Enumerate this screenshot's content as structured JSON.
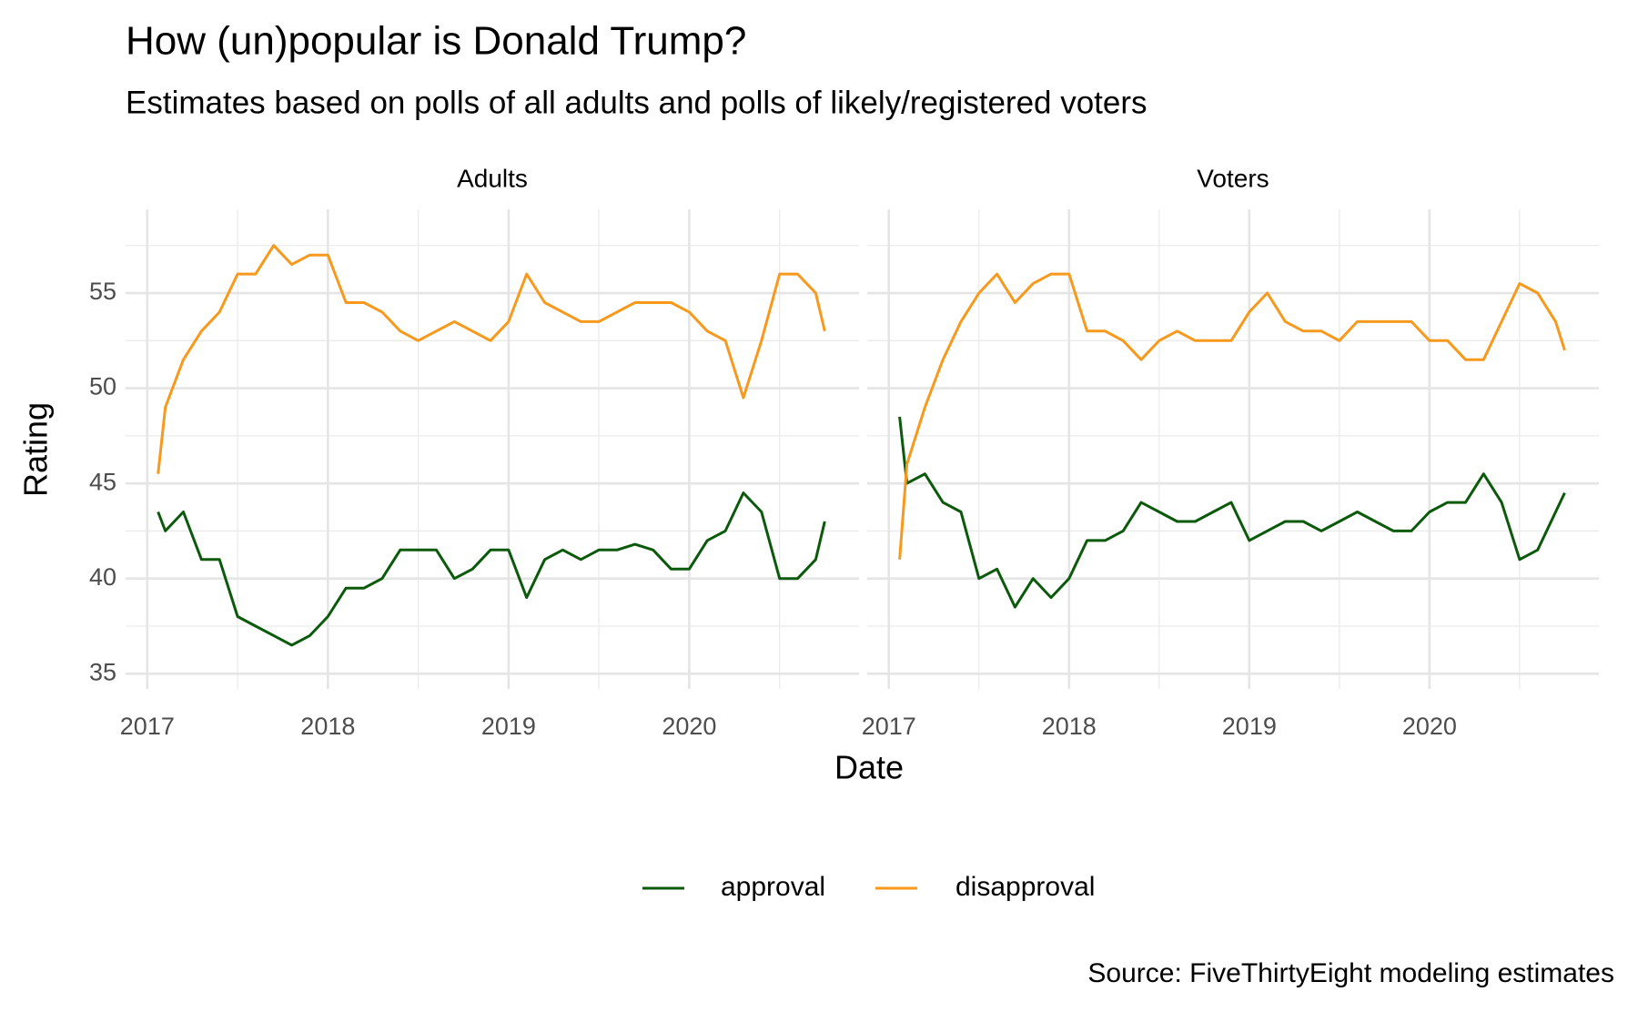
{
  "title": "How (un)popular is Donald Trump?",
  "subtitle": "Estimates based on polls of all adults and polls of likely/registered voters",
  "xlabel": "Date",
  "ylabel": "Rating",
  "caption": "Source: FiveThirtyEight modeling estimates",
  "chart_data": [
    {
      "type": "line",
      "title": "Adults",
      "x": [
        2017.06,
        2017.1,
        2017.2,
        2017.3,
        2017.4,
        2017.5,
        2017.6,
        2017.7,
        2017.8,
        2017.9,
        2018.0,
        2018.1,
        2018.2,
        2018.3,
        2018.4,
        2018.5,
        2018.6,
        2018.7,
        2018.8,
        2018.9,
        2019.0,
        2019.1,
        2019.2,
        2019.3,
        2019.4,
        2019.5,
        2019.6,
        2019.7,
        2019.8,
        2019.9,
        2020.0,
        2020.1,
        2020.2,
        2020.3,
        2020.4,
        2020.5,
        2020.6,
        2020.7,
        2020.75
      ],
      "series": [
        {
          "name": "approval",
          "color": "#0b5a0b",
          "values": [
            43.5,
            42.5,
            43.5,
            41,
            41,
            38,
            37.5,
            37,
            36.5,
            37,
            38,
            39.5,
            39.5,
            40,
            41.5,
            41.5,
            41.5,
            40,
            40.5,
            41.5,
            41.5,
            39,
            41,
            41.5,
            41,
            41.5,
            41.5,
            41.8,
            41.5,
            40.5,
            40.5,
            42,
            42.5,
            44.5,
            43.5,
            40,
            40,
            41,
            43
          ]
        },
        {
          "name": "disapproval",
          "color": "#f7991c",
          "values": [
            45.5,
            49,
            51.5,
            53,
            54,
            56,
            56,
            57.5,
            56.5,
            57,
            57,
            54.5,
            54.5,
            54,
            53,
            52.5,
            53,
            53.5,
            53,
            52.5,
            53.5,
            56,
            54.5,
            54,
            53.5,
            53.5,
            54,
            54.5,
            54.5,
            54.5,
            54,
            53,
            52.5,
            49.5,
            52.5,
            56,
            56,
            55,
            53
          ]
        }
      ],
      "xlim": [
        2016.88,
        2020.94
      ],
      "ylim": [
        34.2,
        59.4
      ],
      "xticks": [
        2017,
        2018,
        2019,
        2020
      ],
      "yticks": [
        35,
        40,
        45,
        50,
        55
      ],
      "xminor": [
        2017.5,
        2018.5,
        2019.5,
        2020.5
      ],
      "yminor": [
        37.5,
        42.5,
        47.5,
        52.5,
        57.5
      ],
      "grid": true
    },
    {
      "type": "line",
      "title": "Voters",
      "x": [
        2017.06,
        2017.1,
        2017.2,
        2017.3,
        2017.4,
        2017.5,
        2017.6,
        2017.7,
        2017.8,
        2017.9,
        2018.0,
        2018.1,
        2018.2,
        2018.3,
        2018.4,
        2018.5,
        2018.6,
        2018.7,
        2018.8,
        2018.9,
        2019.0,
        2019.1,
        2019.2,
        2019.3,
        2019.4,
        2019.5,
        2019.6,
        2019.7,
        2019.8,
        2019.9,
        2020.0,
        2020.1,
        2020.2,
        2020.3,
        2020.4,
        2020.5,
        2020.6,
        2020.7,
        2020.75
      ],
      "series": [
        {
          "name": "approval",
          "color": "#0b5a0b",
          "values": [
            48.5,
            45,
            45.5,
            44,
            43.5,
            40,
            40.5,
            38.5,
            40,
            39,
            40,
            42,
            42,
            42.5,
            44,
            43.5,
            43,
            43,
            43.5,
            44,
            42,
            42.5,
            43,
            43,
            42.5,
            43,
            43.5,
            43,
            42.5,
            42.5,
            43.5,
            44,
            44,
            45.5,
            44,
            41,
            41.5,
            43.5,
            44.5
          ]
        },
        {
          "name": "disapproval",
          "color": "#f7991c",
          "values": [
            41,
            46,
            49,
            51.5,
            53.5,
            55,
            56,
            54.5,
            55.5,
            56,
            56,
            53,
            53,
            52.5,
            51.5,
            52.5,
            53,
            52.5,
            52.5,
            52.5,
            54,
            55,
            53.5,
            53,
            53,
            52.5,
            53.5,
            53.5,
            53.5,
            53.5,
            52.5,
            52.5,
            51.5,
            51.5,
            53.5,
            55.5,
            55,
            53.5,
            52
          ]
        }
      ],
      "xlim": [
        2016.88,
        2020.94
      ],
      "ylim": [
        34.2,
        59.4
      ],
      "xticks": [
        2017,
        2018,
        2019,
        2020
      ],
      "yticks": [
        35,
        40,
        45,
        50,
        55
      ],
      "xminor": [
        2017.5,
        2018.5,
        2019.5,
        2020.5
      ],
      "yminor": [
        37.5,
        42.5,
        47.5,
        52.5,
        57.5
      ],
      "grid": true
    }
  ]
}
